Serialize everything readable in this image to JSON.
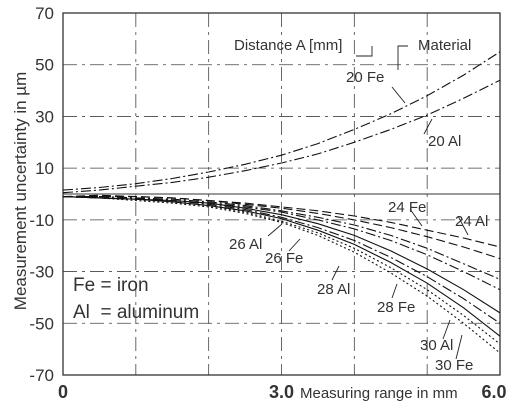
{
  "chart_data": {
    "type": "line",
    "title": "",
    "xlabel": "Measuring range in mm",
    "ylabel": "Measurement uncertainty in µm",
    "xlim": [
      0,
      6.0
    ],
    "ylim": [
      -70,
      70
    ],
    "x_ticks": [
      {
        "value": 0,
        "label": "0"
      },
      {
        "value": 3.0,
        "label": "3.0"
      },
      {
        "value": 6.0,
        "label": "6.0"
      }
    ],
    "y_ticks": [
      70,
      50,
      30,
      10,
      -10,
      -30,
      -50,
      -70
    ],
    "grid": true,
    "legend_header": {
      "distance": "Distance A [mm]",
      "material": "Material"
    },
    "legend_note": [
      "Fe = iron",
      "Al  = aluminum"
    ],
    "series": [
      {
        "name": "20 Fe",
        "dash": "dashdot",
        "x": [
          0,
          0.5,
          1,
          1.5,
          2,
          2.5,
          3,
          3.5,
          4,
          4.5,
          5,
          5.5,
          6
        ],
        "y": [
          1.5,
          2.5,
          4,
          6,
          8.5,
          11.5,
          15,
          19.5,
          25,
          31,
          38,
          46,
          55
        ]
      },
      {
        "name": "20 Al",
        "dash": "dashdot",
        "x": [
          0,
          0.5,
          1,
          1.5,
          2,
          2.5,
          3,
          3.5,
          4,
          4.5,
          5,
          5.5,
          6
        ],
        "y": [
          0.5,
          1.5,
          3,
          4.5,
          6.5,
          9,
          12,
          15.5,
          20,
          25,
          30.5,
          37,
          44
        ]
      },
      {
        "name": "24 Fe",
        "dash": "dash",
        "x": [
          0,
          0.5,
          1,
          1.5,
          2,
          2.5,
          3,
          3.5,
          4,
          4.5,
          5,
          5.5,
          6
        ],
        "y": [
          -1,
          -0.5,
          -1,
          -1.5,
          -2.5,
          -3.5,
          -5,
          -6.5,
          -8.5,
          -11,
          -14,
          -17,
          -20.5
        ]
      },
      {
        "name": "24 Al",
        "dash": "dash",
        "x": [
          0,
          0.5,
          1,
          1.5,
          2,
          2.5,
          3,
          3.5,
          4,
          4.5,
          5,
          5.5,
          6
        ],
        "y": [
          -1,
          -1,
          -1,
          -1.5,
          -2.5,
          -4,
          -5.5,
          -7.5,
          -10,
          -13,
          -16.5,
          -20.5,
          -25
        ]
      },
      {
        "name": "26 Al",
        "dash": "dashdot",
        "x": [
          0,
          0.5,
          1,
          1.5,
          2,
          2.5,
          3,
          3.5,
          4,
          4.5,
          5,
          5.5,
          6
        ],
        "y": [
          -1,
          -1,
          -1.5,
          -2,
          -3,
          -4.5,
          -6.5,
          -9,
          -12,
          -16,
          -21,
          -27,
          -33
        ]
      },
      {
        "name": "26 Fe",
        "dash": "dashdot",
        "x": [
          0,
          0.5,
          1,
          1.5,
          2,
          2.5,
          3,
          3.5,
          4,
          4.5,
          5,
          5.5,
          6
        ],
        "y": [
          -1,
          -1,
          -1.5,
          -2.5,
          -3.5,
          -5,
          -7,
          -10,
          -13.5,
          -18,
          -23.5,
          -30,
          -37
        ]
      },
      {
        "name": "28 Al",
        "dash": "solid",
        "x": [
          0,
          0.5,
          1,
          1.5,
          2,
          2.5,
          3,
          3.5,
          4,
          4.5,
          5,
          5.5,
          6
        ],
        "y": [
          -1,
          -1.5,
          -2,
          -2.5,
          -3.5,
          -5.5,
          -8,
          -11.5,
          -16,
          -22,
          -29,
          -37,
          -46
        ]
      },
      {
        "name": "28 Fe",
        "dash": "dashdot",
        "x": [
          0,
          0.5,
          1,
          1.5,
          2,
          2.5,
          3,
          3.5,
          4,
          4.5,
          5,
          5.5,
          6
        ],
        "y": [
          -1,
          -1.5,
          -2,
          -2.5,
          -4,
          -6,
          -9,
          -13,
          -18,
          -24.5,
          -32,
          -40.5,
          -50
        ]
      },
      {
        "name": "30 Al",
        "dash": "solid",
        "x": [
          0,
          0.5,
          1,
          1.5,
          2,
          2.5,
          3,
          3.5,
          4,
          4.5,
          5,
          5.5,
          6
        ],
        "y": [
          -1,
          -1.5,
          -2,
          -3,
          -4.5,
          -6.5,
          -9.5,
          -14,
          -19.5,
          -26.5,
          -34.5,
          -44,
          -55
        ]
      },
      {
        "name": "30 Fe",
        "dash": "dot",
        "x": [
          0,
          0.5,
          1,
          1.5,
          2,
          2.5,
          3,
          3.5,
          4,
          4.5,
          5,
          5.5,
          6
        ],
        "y": [
          -1,
          -1.5,
          -2,
          -3,
          -4.5,
          -7,
          -10.5,
          -15,
          -21,
          -28.5,
          -37,
          -47,
          -58
        ]
      },
      {
        "name": "",
        "dash": "dot",
        "x": [
          0,
          0.5,
          1,
          1.5,
          2,
          2.5,
          3,
          3.5,
          4,
          4.5,
          5,
          5.5,
          6
        ],
        "y": [
          -1,
          -1.5,
          -2.5,
          -3.5,
          -5,
          -7.5,
          -11,
          -16,
          -22.5,
          -30.5,
          -39.5,
          -50,
          -61.5
        ]
      }
    ]
  }
}
